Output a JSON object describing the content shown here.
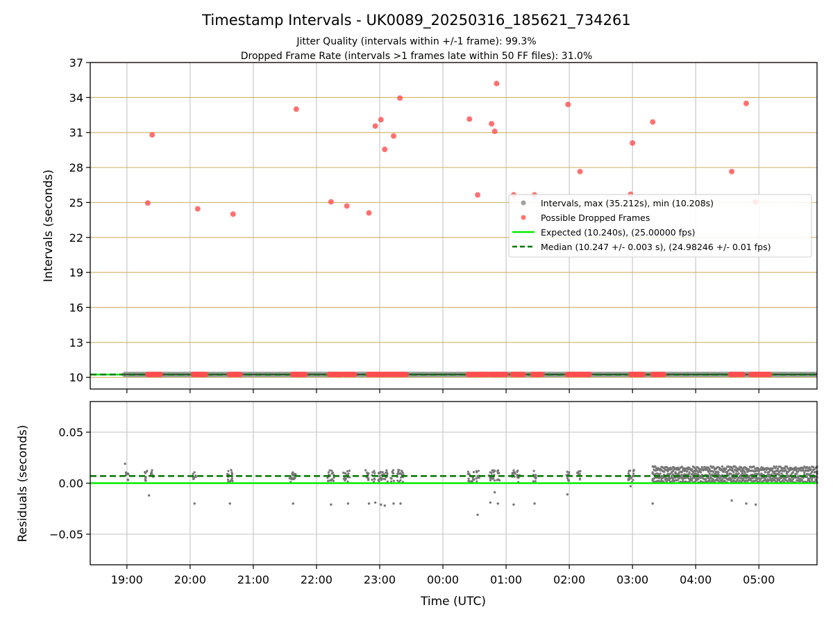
{
  "chart_data": [
    {
      "type": "scatter",
      "title": "Timestamp Intervals - UK0089_20250316_185621_734261",
      "subtitle_lines": [
        "Jitter Quality (intervals within +/-1 frame): 99.3%",
        "Dropped Frame Rate (intervals >1 frames late within 50 FF files): 31.0%"
      ],
      "xlabel": "",
      "ylabel": "Intervals (seconds)",
      "xlim_hours": [
        18.42,
        29.92
      ],
      "ylim": [
        9.0,
        37.0
      ],
      "yticks": [
        10,
        13,
        16,
        19,
        22,
        25,
        28,
        31,
        34,
        37
      ],
      "ytick_labels": [
        "10",
        "13",
        "16",
        "19",
        "22",
        "25",
        "28",
        "31",
        "34",
        "37"
      ],
      "grid": "x: gray; y: goldenrod",
      "legend_position": "center-right",
      "legend": [
        "Intervals, max (35.212s), min (10.208s)",
        "Possible Dropped Frames",
        "Expected (10.240s), (25.00000 fps)",
        "Median (10.247 +/- 0.003 s), (24.98246 +/- 0.01 fps)"
      ],
      "expected_interval": 10.24,
      "median_interval": 10.247,
      "normal_interval_band": {
        "x_start_hours": 18.95,
        "x_end_hours": 29.92,
        "y": 10.25
      },
      "dropped_frame_points": [
        {
          "x": 19.33,
          "y": 24.95
        },
        {
          "x": 19.4,
          "y": 30.8
        },
        {
          "x": 20.12,
          "y": 24.45
        },
        {
          "x": 20.68,
          "y": 24.0
        },
        {
          "x": 21.68,
          "y": 33.0
        },
        {
          "x": 22.23,
          "y": 25.05
        },
        {
          "x": 22.48,
          "y": 24.7
        },
        {
          "x": 22.83,
          "y": 24.1
        },
        {
          "x": 22.93,
          "y": 31.55
        },
        {
          "x": 23.02,
          "y": 32.1
        },
        {
          "x": 23.08,
          "y": 29.55
        },
        {
          "x": 23.22,
          "y": 30.7
        },
        {
          "x": 23.32,
          "y": 33.95
        },
        {
          "x": 24.42,
          "y": 32.15
        },
        {
          "x": 24.55,
          "y": 25.65
        },
        {
          "x": 24.77,
          "y": 31.75
        },
        {
          "x": 24.82,
          "y": 31.1
        },
        {
          "x": 24.85,
          "y": 35.2
        },
        {
          "x": 25.12,
          "y": 25.65
        },
        {
          "x": 25.45,
          "y": 25.65
        },
        {
          "x": 25.98,
          "y": 33.4
        },
        {
          "x": 26.17,
          "y": 27.65
        },
        {
          "x": 26.97,
          "y": 25.7
        },
        {
          "x": 27.0,
          "y": 30.1
        },
        {
          "x": 27.32,
          "y": 31.9
        },
        {
          "x": 28.57,
          "y": 27.65
        },
        {
          "x": 28.8,
          "y": 33.5
        },
        {
          "x": 28.95,
          "y": 25.05
        }
      ],
      "dropped_frame_baseline_clusters": [
        {
          "x_start": 19.33,
          "x_end": 19.55
        },
        {
          "x_start": 20.05,
          "x_end": 20.25
        },
        {
          "x_start": 20.62,
          "x_end": 20.8
        },
        {
          "x_start": 21.62,
          "x_end": 21.82
        },
        {
          "x_start": 22.2,
          "x_end": 22.4
        },
        {
          "x_start": 22.45,
          "x_end": 22.62
        },
        {
          "x_start": 22.82,
          "x_end": 23.42
        },
        {
          "x_start": 24.4,
          "x_end": 24.72
        },
        {
          "x_start": 24.75,
          "x_end": 25.02
        },
        {
          "x_start": 25.1,
          "x_end": 25.28
        },
        {
          "x_start": 25.42,
          "x_end": 25.58
        },
        {
          "x_start": 25.97,
          "x_end": 26.33
        },
        {
          "x_start": 26.97,
          "x_end": 27.18
        },
        {
          "x_start": 27.32,
          "x_end": 27.5
        },
        {
          "x_start": 28.55,
          "x_end": 28.75
        },
        {
          "x_start": 28.87,
          "x_end": 29.18
        }
      ]
    },
    {
      "type": "scatter",
      "title": "",
      "xlabel": "Time (UTC)",
      "ylabel": "Residuals (seconds)",
      "xlim_hours": [
        18.42,
        29.92
      ],
      "ylim": [
        -0.08,
        0.08
      ],
      "yticks": [
        -0.05,
        0.0,
        0.05
      ],
      "ytick_labels": [
        "−0.05",
        "0.00",
        "0.05"
      ],
      "xticks_hours": [
        19,
        20,
        21,
        22,
        23,
        24,
        25,
        26,
        27,
        28,
        29
      ],
      "xtick_labels": [
        "19:00",
        "20:00",
        "21:00",
        "22:00",
        "23:00",
        "00:00",
        "01:00",
        "02:00",
        "03:00",
        "04:00",
        "05:00"
      ],
      "grid": "x and y: gray",
      "expected_residual": 0.0,
      "median_residual": 0.007,
      "residual_clusters": [
        19.0,
        19.3,
        19.4,
        20.07,
        20.6,
        20.65,
        21.6,
        21.65,
        22.2,
        22.25,
        22.45,
        22.5,
        22.8,
        22.9,
        23.0,
        23.05,
        23.1,
        23.2,
        23.3,
        23.35,
        24.42,
        24.48,
        24.55,
        24.75,
        24.8,
        24.88,
        25.12,
        25.2,
        25.45,
        25.98,
        26.15,
        26.95,
        27.0
      ],
      "residual_outliers": [
        {
          "x": 18.97,
          "y": 0.019
        },
        {
          "x": 19.35,
          "y": -0.012
        },
        {
          "x": 20.07,
          "y": -0.02
        },
        {
          "x": 20.63,
          "y": -0.02
        },
        {
          "x": 21.63,
          "y": -0.02
        },
        {
          "x": 22.23,
          "y": -0.021
        },
        {
          "x": 22.5,
          "y": -0.02
        },
        {
          "x": 22.83,
          "y": -0.02
        },
        {
          "x": 22.93,
          "y": -0.019
        },
        {
          "x": 23.02,
          "y": -0.021
        },
        {
          "x": 23.08,
          "y": -0.022
        },
        {
          "x": 23.22,
          "y": -0.02
        },
        {
          "x": 23.33,
          "y": -0.02
        },
        {
          "x": 24.55,
          "y": -0.031
        },
        {
          "x": 24.75,
          "y": -0.019
        },
        {
          "x": 24.82,
          "y": -0.009
        },
        {
          "x": 24.87,
          "y": -0.02
        },
        {
          "x": 25.12,
          "y": -0.021
        },
        {
          "x": 25.45,
          "y": -0.02
        },
        {
          "x": 25.97,
          "y": -0.011
        },
        {
          "x": 26.97,
          "y": -0.003
        },
        {
          "x": 27.32,
          "y": -0.02
        },
        {
          "x": 28.57,
          "y": -0.017
        },
        {
          "x": 28.8,
          "y": -0.02
        },
        {
          "x": 28.95,
          "y": -0.021
        }
      ],
      "dense_band_start_hours": 27.32
    }
  ],
  "colors": {
    "dropped": "#ff4d4d",
    "interval_gray": "#a0a0a0",
    "residual_gray": "#777777",
    "expected_line": "#00ee00",
    "median_line": "#007700",
    "ygrid_top": "#d4b870",
    "xgrid": "#c8c8c8"
  }
}
